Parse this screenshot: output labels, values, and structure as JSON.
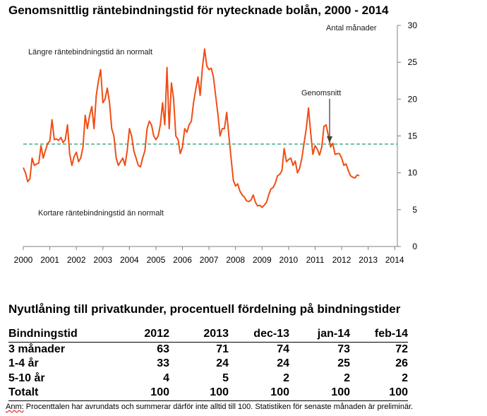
{
  "chart_data": {
    "type": "line",
    "title": "Genomsnittlig räntebindningstid för nytecknade bolån, 2000 - 2014",
    "unit_label": "Antal månader",
    "annotations": {
      "above": "Längre räntebindningstid än normalt",
      "below": "Kortare räntebindningstid än normalt",
      "average": "Genomsnitt"
    },
    "average_value": 13.9,
    "xlim": [
      2000,
      2014.1
    ],
    "ylim": [
      0,
      30
    ],
    "x_ticks": [
      "2000",
      "2001",
      "2002",
      "2003",
      "2004",
      "2005",
      "2006",
      "2007",
      "2008",
      "2009",
      "2010",
      "2011",
      "2012",
      "2013",
      "2014"
    ],
    "y_ticks": [
      "0",
      "5",
      "10",
      "15",
      "20",
      "25",
      "30"
    ],
    "grid": false,
    "colors": {
      "series": "#f04e16",
      "average": "#4bac8a",
      "axis": "#808080"
    },
    "series": [
      {
        "start": 2000,
        "step": 0.0833333,
        "values": [
          10.7,
          10,
          8.8,
          9.2,
          12,
          11,
          11.2,
          11.3,
          13.7,
          12,
          13,
          14,
          14.3,
          17.2,
          14.5,
          14.6,
          14.4,
          14.8,
          14.1,
          14.5,
          16.5,
          12.5,
          11,
          12.2,
          12.8,
          11.5,
          12,
          13.5,
          17.8,
          16,
          17.8,
          19,
          16,
          20.5,
          22.5,
          24,
          19.5,
          20,
          21.5,
          19.5,
          16,
          15,
          12,
          11,
          11.5,
          12,
          11,
          13,
          16,
          15,
          13,
          12,
          11,
          10.8,
          12,
          13,
          16,
          17,
          16.5,
          15,
          14.5,
          15,
          16.5,
          19.5,
          16.5,
          24.3,
          16,
          22.2,
          20,
          15,
          14.5,
          12.6,
          13.5,
          16,
          15.5,
          16.5,
          17,
          19.5,
          21.3,
          23,
          20.5,
          24.2,
          26.8,
          24.5,
          24,
          24.2,
          23,
          20.5,
          18,
          15,
          16,
          16,
          18.2,
          15,
          12,
          9,
          8.2,
          8.5,
          7.5,
          7,
          6.7,
          6.2,
          6.1,
          6.3,
          7,
          6,
          5.5,
          5.6,
          5.3,
          5.6,
          6,
          7,
          7.8,
          8,
          8.6,
          9.6,
          9.8,
          10.3,
          13.3,
          11.5,
          11.8,
          12,
          11,
          11.6,
          10,
          10.6,
          12,
          14,
          16,
          18.8,
          15.4,
          12.5,
          13.7,
          13.2,
          12.4,
          13.5,
          16.3,
          16.5,
          15,
          13.5,
          14,
          12.5,
          12.6,
          12.6,
          12,
          11,
          11.2,
          10.3,
          9.6,
          9.4,
          9.3,
          9.7,
          9.6
        ]
      }
    ]
  },
  "table": {
    "title": "Nyutlåning till privatkunder, procentuell fördelning på bindningstider",
    "columns": [
      "Bindningstid",
      "2012",
      "2013",
      "dec-13",
      "jan-14",
      "feb-14"
    ],
    "rows": [
      [
        "3 månader",
        "63",
        "71",
        "74",
        "73",
        "72"
      ],
      [
        "1-4 år",
        "33",
        "24",
        "24",
        "25",
        "26"
      ],
      [
        "5-10 år",
        "4",
        "5",
        "2",
        "2",
        "2"
      ],
      [
        "Totalt",
        "100",
        "100",
        "100",
        "100",
        "100"
      ]
    ]
  },
  "note": {
    "label": "Anm:",
    "text": " Procenttalen har avrundats och summerar därför inte alltid till 100. Statistiken för senaste månaden är preliminär."
  }
}
